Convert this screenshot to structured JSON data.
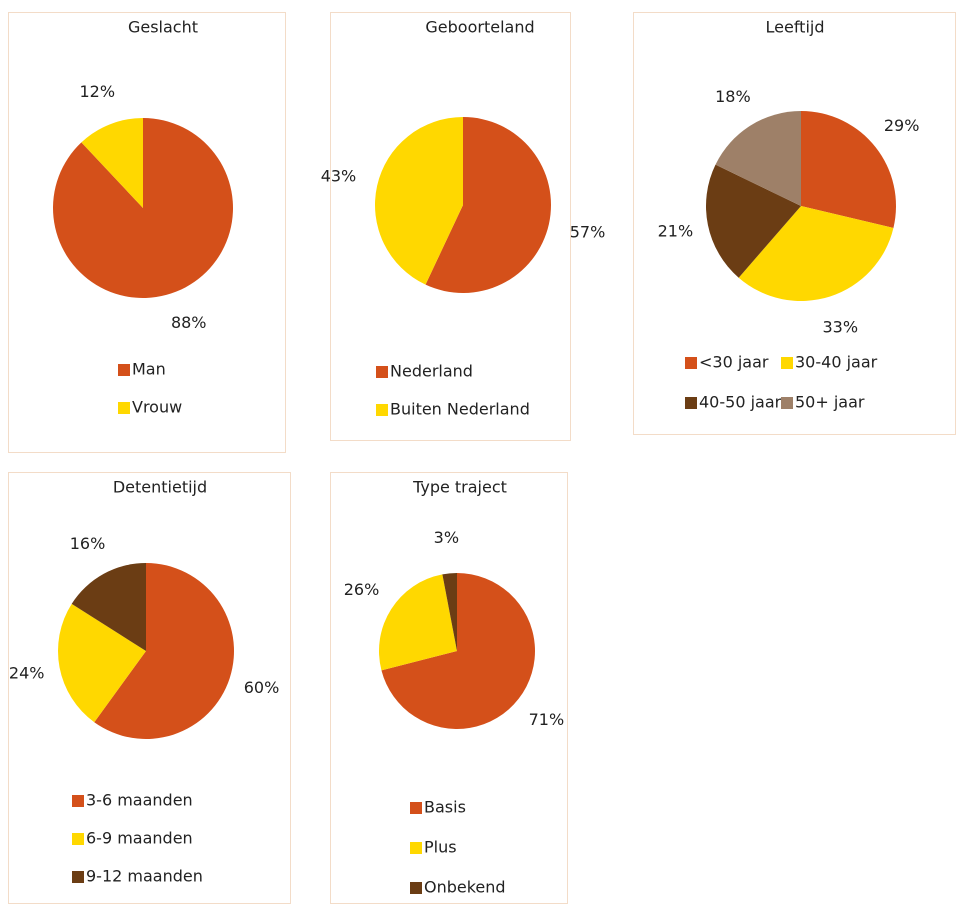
{
  "chart_data": [
    {
      "type": "pie",
      "title": "Geslacht",
      "categories": [
        "Man",
        "Vrouw"
      ],
      "values": [
        88,
        12
      ],
      "value_labels": [
        "88%",
        "12%"
      ],
      "colors": [
        "#d4501a",
        "#ffd800"
      ]
    },
    {
      "type": "pie",
      "title": "Geboorteland",
      "categories": [
        "Nederland",
        "Buiten Nederland"
      ],
      "values": [
        57,
        43
      ],
      "value_labels": [
        "57%",
        "43%"
      ],
      "colors": [
        "#d4501a",
        "#ffd800"
      ]
    },
    {
      "type": "pie",
      "title": "Leeftijd",
      "categories": [
        "<30 jaar",
        "30-40 jaar",
        "40-50 jaar",
        "50+ jaar"
      ],
      "values": [
        29,
        33,
        21,
        18
      ],
      "value_labels": [
        "29%",
        "33%",
        "21%",
        "18%"
      ],
      "colors": [
        "#d4501a",
        "#ffd800",
        "#6b3d14",
        "#9e8068"
      ]
    },
    {
      "type": "pie",
      "title": "Detentietijd",
      "categories": [
        "3-6 maanden",
        "6-9 maanden",
        "9-12 maanden"
      ],
      "values": [
        60,
        24,
        16
      ],
      "value_labels": [
        "60%",
        "24%",
        "16%"
      ],
      "colors": [
        "#d4501a",
        "#ffd800",
        "#6b3d14"
      ]
    },
    {
      "type": "pie",
      "title": "Type traject",
      "categories": [
        "Basis",
        "Plus",
        "Onbekend"
      ],
      "values": [
        71,
        26,
        3
      ],
      "value_labels": [
        "71%",
        "26%",
        "3%"
      ],
      "colors": [
        "#d4501a",
        "#ffd800",
        "#6b3d14"
      ]
    }
  ]
}
